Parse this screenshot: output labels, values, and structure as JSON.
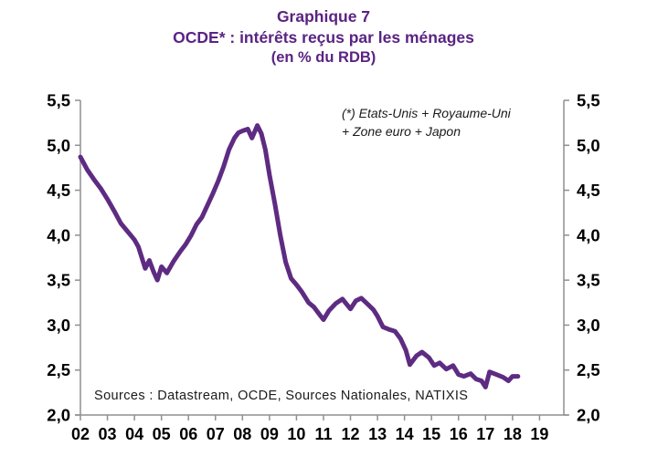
{
  "header": {
    "line1": "Graphique 7",
    "line2": "OCDE* : intérêts reçus par les ménages",
    "line3": "(en % du RDB)"
  },
  "annotation": {
    "line1": "(*) Etats-Unis + Royaume-Uni",
    "line2": "+ Zone euro + Japon"
  },
  "footer": {
    "sources": "Sources : Datastream, OCDE, Sources Nationales, NATIXIS"
  },
  "colors": {
    "title_purple": "#5a2383",
    "line_purple": "#5e2b82",
    "axis_grey": "#8f8f8f",
    "text_black": "#000000"
  },
  "chart_data": {
    "type": "line",
    "title": "OCDE* : intérêts reçus par les ménages (en % du RDB)",
    "xlabel": "",
    "ylabel": "",
    "grid": false,
    "legend": "none",
    "dual_y_axis": true,
    "xlim": [
      2002,
      2019.9
    ],
    "ylim": [
      2.0,
      5.5
    ],
    "y_ticks": [
      2.0,
      2.5,
      3.0,
      3.5,
      4.0,
      4.5,
      5.0,
      5.5
    ],
    "y_tick_labels": [
      "2,0",
      "2,5",
      "3,0",
      "3,5",
      "4,0",
      "4,5",
      "5,0",
      "5,5"
    ],
    "x_ticks": [
      2002,
      2003,
      2004,
      2005,
      2006,
      2007,
      2008,
      2009,
      2010,
      2011,
      2012,
      2013,
      2014,
      2015,
      2016,
      2017,
      2018,
      2019
    ],
    "x_tick_labels": [
      "02",
      "03",
      "04",
      "05",
      "06",
      "07",
      "08",
      "09",
      "10",
      "11",
      "12",
      "13",
      "14",
      "15",
      "16",
      "17",
      "18",
      "19"
    ],
    "series": [
      {
        "name": "Intérêts reçus par les ménages (% du RDB)",
        "x": [
          2002.0,
          2002.25,
          2002.5,
          2002.75,
          2003.0,
          2003.25,
          2003.5,
          2003.75,
          2004.0,
          2004.15,
          2004.4,
          2004.55,
          2004.7,
          2004.85,
          2005.0,
          2005.2,
          2005.45,
          2005.7,
          2005.9,
          2006.1,
          2006.3,
          2006.5,
          2006.7,
          2006.9,
          2007.1,
          2007.3,
          2007.5,
          2007.7,
          2007.85,
          2008.0,
          2008.2,
          2008.35,
          2008.55,
          2008.7,
          2008.85,
          2009.0,
          2009.2,
          2009.4,
          2009.6,
          2009.8,
          2010.0,
          2010.2,
          2010.45,
          2010.65,
          2010.85,
          2011.0,
          2011.2,
          2011.45,
          2011.7,
          2012.0,
          2012.2,
          2012.4,
          2012.65,
          2012.85,
          2013.0,
          2013.2,
          2013.45,
          2013.65,
          2013.85,
          2014.05,
          2014.2,
          2014.45,
          2014.65,
          2014.9,
          2015.1,
          2015.3,
          2015.55,
          2015.8,
          2016.0,
          2016.2,
          2016.45,
          2016.65,
          2016.85,
          2017.0,
          2017.15,
          2017.4,
          2017.65,
          2017.85,
          2018.0,
          2018.2
        ],
        "values": [
          4.87,
          4.73,
          4.62,
          4.52,
          4.4,
          4.27,
          4.13,
          4.04,
          3.95,
          3.87,
          3.63,
          3.72,
          3.6,
          3.5,
          3.65,
          3.58,
          3.71,
          3.82,
          3.9,
          4.0,
          4.12,
          4.2,
          4.33,
          4.46,
          4.6,
          4.76,
          4.95,
          5.08,
          5.14,
          5.16,
          5.18,
          5.08,
          5.22,
          5.13,
          4.95,
          4.67,
          4.35,
          4.0,
          3.7,
          3.52,
          3.45,
          3.37,
          3.25,
          3.2,
          3.12,
          3.06,
          3.16,
          3.24,
          3.29,
          3.18,
          3.27,
          3.3,
          3.23,
          3.17,
          3.1,
          2.98,
          2.95,
          2.93,
          2.85,
          2.72,
          2.56,
          2.66,
          2.7,
          2.64,
          2.55,
          2.58,
          2.51,
          2.55,
          2.45,
          2.43,
          2.46,
          2.4,
          2.38,
          2.31,
          2.48,
          2.45,
          2.42,
          2.38,
          2.43,
          2.43
        ]
      }
    ]
  }
}
